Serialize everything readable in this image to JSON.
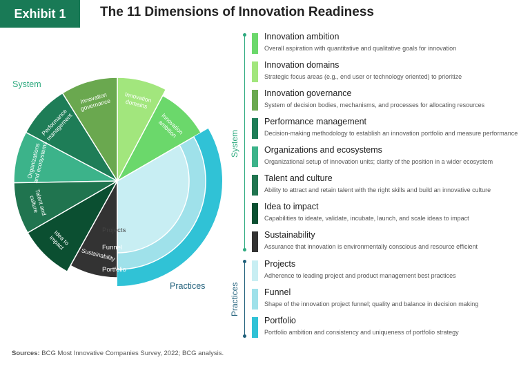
{
  "exhibit_label": "Exhibit 1",
  "title": "The 11 Dimensions of Innovation Readiness",
  "wheel": {
    "system_label": "System",
    "practices_label": "Practices",
    "system_segments": [
      {
        "label": "Innovation ambition",
        "lines": [
          "Innovation",
          "ambition"
        ],
        "color": "#6bd86b"
      },
      {
        "label": "Innovation domains",
        "lines": [
          "Innovation",
          "domains"
        ],
        "color": "#a2e67d"
      },
      {
        "label": "Innovation governance",
        "lines": [
          "Innovation",
          "governance"
        ],
        "color": "#6aa84f"
      },
      {
        "label": "Performance management",
        "lines": [
          "Performance",
          "management"
        ],
        "color": "#1e7d57"
      },
      {
        "label": "Organizations and ecosystems",
        "lines": [
          "Organizations",
          "and ecosystems"
        ],
        "color": "#3cb38a"
      },
      {
        "label": "Talent and culture",
        "lines": [
          "Talent and",
          "culture"
        ],
        "color": "#20744f"
      },
      {
        "label": "Idea to impact",
        "lines": [
          "Idea to",
          "impact"
        ],
        "color": "#0b4f31"
      },
      {
        "label": "Sustainability",
        "lines": [
          "Sustainability"
        ],
        "color": "#333333"
      }
    ],
    "practice_rings": [
      {
        "label": "Portfolio",
        "color": "#30c2d6"
      },
      {
        "label": "Funnel",
        "color": "#9fe1ea"
      },
      {
        "label": "Projects",
        "color": "#c8eef3"
      }
    ]
  },
  "legend": {
    "system_label": "System",
    "practices_label": "Practices",
    "accent_system": "#2eaa7f",
    "accent_practices": "#1f5f7a",
    "items": [
      {
        "name": "Innovation ambition",
        "desc": "Overall aspiration with quantitative and qualitative goals for innovation",
        "color": "#6bd86b"
      },
      {
        "name": "Innovation domains",
        "desc": "Strategic focus areas (e.g., end user or technology oriented) to prioritize",
        "color": "#a2e67d"
      },
      {
        "name": "Innovation governance",
        "desc": "System of decision bodies, mechanisms, and processes for allocating resources",
        "color": "#6aa84f"
      },
      {
        "name": "Performance management",
        "desc": "Decision-making methodology to establish an innovation portfolio and measure performance",
        "color": "#1e7d57"
      },
      {
        "name": "Organizations and ecosystems",
        "desc": "Organizational setup of innovation units; clarity of the position in a wider ecosystem",
        "color": "#3cb38a"
      },
      {
        "name": "Talent and culture",
        "desc": "Ability to attract and retain talent with the right skills and build an innovative culture",
        "color": "#20744f"
      },
      {
        "name": "Idea to impact",
        "desc": "Capabilities to ideate, validate, incubate, launch, and scale ideas to impact",
        "color": "#0b4f31"
      },
      {
        "name": "Sustainability",
        "desc": "Assurance that innovation is environmentally conscious and resource efficient",
        "color": "#333333"
      },
      {
        "name": "Projects",
        "desc": "Adherence to leading project and product management best practices",
        "color": "#c8eef3"
      },
      {
        "name": "Funnel",
        "desc": "Shape of the innovation project funnel; quality and balance in decision making",
        "color": "#9fe1ea"
      },
      {
        "name": "Portfolio",
        "desc": "Portfolio ambition and consistency and uniqueness of portfolio strategy",
        "color": "#30c2d6"
      }
    ]
  },
  "sources": {
    "label": "Sources:",
    "text": "BCG Most Innovative Companies Survey, 2022; BCG analysis."
  }
}
